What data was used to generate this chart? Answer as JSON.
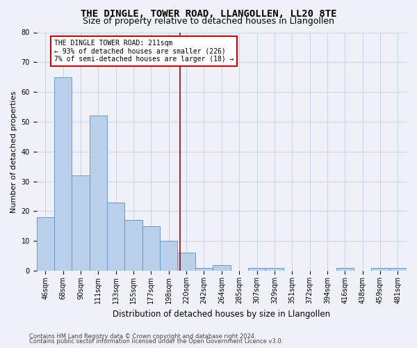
{
  "title": "THE DINGLE, TOWER ROAD, LLANGOLLEN, LL20 8TE",
  "subtitle": "Size of property relative to detached houses in Llangollen",
  "xlabel": "Distribution of detached houses by size in Llangollen",
  "ylabel": "Number of detached properties",
  "footer_line1": "Contains HM Land Registry data © Crown copyright and database right 2024.",
  "footer_line2": "Contains public sector information licensed under the Open Government Licence v3.0.",
  "bin_labels": [
    "46sqm",
    "68sqm",
    "90sqm",
    "111sqm",
    "133sqm",
    "155sqm",
    "177sqm",
    "198sqm",
    "220sqm",
    "242sqm",
    "264sqm",
    "285sqm",
    "307sqm",
    "329sqm",
    "351sqm",
    "372sqm",
    "394sqm",
    "416sqm",
    "438sqm",
    "459sqm",
    "481sqm"
  ],
  "bar_heights": [
    18,
    65,
    32,
    52,
    23,
    17,
    15,
    10,
    6,
    1,
    2,
    0,
    1,
    1,
    0,
    0,
    0,
    1,
    0,
    1,
    1
  ],
  "bar_color": "#b8d0ea",
  "bar_edge_color": "#6699cc",
  "vline_x_idx": 7.65,
  "vline_color": "#990000",
  "annotation_text": "THE DINGLE TOWER ROAD: 211sqm\n← 93% of detached houses are smaller (226)\n7% of semi-detached houses are larger (18) →",
  "annotation_box_facecolor": "#ffffff",
  "annotation_box_edgecolor": "#cc0000",
  "ylim": [
    0,
    80
  ],
  "yticks": [
    0,
    10,
    20,
    30,
    40,
    50,
    60,
    70,
    80
  ],
  "grid_color": "#c8d4e8",
  "background_color": "#eef2f8",
  "title_fontsize": 10,
  "subtitle_fontsize": 9,
  "ylabel_fontsize": 8,
  "xlabel_fontsize": 8.5,
  "tick_fontsize": 7,
  "annot_fontsize": 7,
  "footer_fontsize": 6
}
